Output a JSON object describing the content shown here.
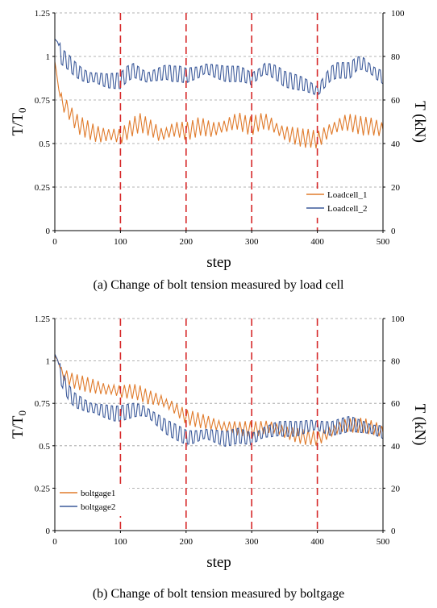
{
  "chart_data": [
    {
      "type": "line",
      "title": "",
      "caption": "(a) Change of bolt tension measured by load cell",
      "xlabel": "step",
      "ylabel": "T/T₀",
      "ylabel_main": "T/T",
      "ylabel_sub": "0",
      "y2label": "T (kN)",
      "xlim": [
        0,
        500
      ],
      "ylim": [
        0,
        1.25
      ],
      "y2lim": [
        0,
        100
      ],
      "xticks": [
        "0",
        "100",
        "200",
        "300",
        "400",
        "500"
      ],
      "yticks": [
        "0",
        "0.25",
        "0.5",
        "0.75",
        "1",
        "1.25"
      ],
      "y2ticks": [
        "0",
        "20",
        "40",
        "60",
        "80",
        "100"
      ],
      "grid": "horizontal dashed",
      "markers": [
        100,
        200,
        300,
        400
      ],
      "legend_position": "bottom-right",
      "series": [
        {
          "name": "Loadcell_1",
          "color": "#e07b2c",
          "points": [
            [
              0,
              0.97
            ],
            [
              3,
              0.9
            ],
            [
              5,
              0.83
            ],
            [
              8,
              0.77
            ],
            [
              12,
              0.73
            ],
            [
              16,
              0.71
            ],
            [
              20,
              0.7
            ],
            [
              25,
              0.66
            ],
            [
              30,
              0.64
            ],
            [
              35,
              0.61
            ],
            [
              40,
              0.6
            ],
            [
              50,
              0.58
            ],
            [
              60,
              0.56
            ],
            [
              70,
              0.55
            ],
            [
              80,
              0.55
            ],
            [
              90,
              0.55
            ],
            [
              100,
              0.54
            ],
            [
              110,
              0.57
            ],
            [
              120,
              0.6
            ],
            [
              130,
              0.62
            ],
            [
              140,
              0.6
            ],
            [
              150,
              0.58
            ],
            [
              160,
              0.55
            ],
            [
              170,
              0.56
            ],
            [
              180,
              0.58
            ],
            [
              190,
              0.58
            ],
            [
              200,
              0.57
            ],
            [
              210,
              0.58
            ],
            [
              220,
              0.6
            ],
            [
              230,
              0.59
            ],
            [
              240,
              0.58
            ],
            [
              250,
              0.59
            ],
            [
              260,
              0.6
            ],
            [
              270,
              0.62
            ],
            [
              280,
              0.63
            ],
            [
              290,
              0.61
            ],
            [
              300,
              0.6
            ],
            [
              310,
              0.62
            ],
            [
              320,
              0.63
            ],
            [
              330,
              0.61
            ],
            [
              340,
              0.58
            ],
            [
              350,
              0.56
            ],
            [
              360,
              0.55
            ],
            [
              370,
              0.54
            ],
            [
              380,
              0.53
            ],
            [
              390,
              0.53
            ],
            [
              400,
              0.52
            ],
            [
              410,
              0.55
            ],
            [
              420,
              0.58
            ],
            [
              430,
              0.6
            ],
            [
              440,
              0.62
            ],
            [
              450,
              0.62
            ],
            [
              460,
              0.61
            ],
            [
              470,
              0.6
            ],
            [
              480,
              0.6
            ],
            [
              490,
              0.59
            ],
            [
              500,
              0.58
            ]
          ],
          "oscillation": 0.06
        },
        {
          "name": "Loadcell_2",
          "color": "#3c5a9a",
          "points": [
            [
              0,
              1.1
            ],
            [
              5,
              1.08
            ],
            [
              10,
              1.0
            ],
            [
              20,
              0.97
            ],
            [
              30,
              0.93
            ],
            [
              40,
              0.9
            ],
            [
              50,
              0.88
            ],
            [
              60,
              0.88
            ],
            [
              70,
              0.87
            ],
            [
              80,
              0.86
            ],
            [
              90,
              0.86
            ],
            [
              100,
              0.86
            ],
            [
              110,
              0.9
            ],
            [
              120,
              0.92
            ],
            [
              130,
              0.9
            ],
            [
              140,
              0.88
            ],
            [
              150,
              0.89
            ],
            [
              160,
              0.9
            ],
            [
              170,
              0.91
            ],
            [
              180,
              0.9
            ],
            [
              190,
              0.9
            ],
            [
              200,
              0.89
            ],
            [
              210,
              0.9
            ],
            [
              220,
              0.91
            ],
            [
              230,
              0.93
            ],
            [
              240,
              0.92
            ],
            [
              250,
              0.91
            ],
            [
              260,
              0.9
            ],
            [
              270,
              0.9
            ],
            [
              280,
              0.9
            ],
            [
              290,
              0.89
            ],
            [
              300,
              0.87
            ],
            [
              310,
              0.9
            ],
            [
              320,
              0.93
            ],
            [
              330,
              0.92
            ],
            [
              340,
              0.9
            ],
            [
              350,
              0.87
            ],
            [
              360,
              0.86
            ],
            [
              370,
              0.85
            ],
            [
              380,
              0.84
            ],
            [
              390,
              0.82
            ],
            [
              400,
              0.8
            ],
            [
              410,
              0.85
            ],
            [
              420,
              0.9
            ],
            [
              430,
              0.92
            ],
            [
              440,
              0.92
            ],
            [
              450,
              0.92
            ],
            [
              460,
              0.96
            ],
            [
              470,
              0.96
            ],
            [
              480,
              0.93
            ],
            [
              490,
              0.9
            ],
            [
              500,
              0.88
            ]
          ],
          "oscillation": 0.07
        }
      ]
    },
    {
      "type": "line",
      "title": "",
      "caption": "(b) Change of bolt tension measured by boltgage",
      "xlabel": "step",
      "ylabel": "T/T₀",
      "ylabel_main": "T/T",
      "ylabel_sub": "0",
      "y2label": "T (kN)",
      "xlim": [
        0,
        500
      ],
      "ylim": [
        0,
        1.25
      ],
      "y2lim": [
        0,
        100
      ],
      "xticks": [
        "0",
        "100",
        "200",
        "300",
        "400",
        "500"
      ],
      "yticks": [
        "0",
        "0.25",
        "0.5",
        "0.75",
        "1",
        "1.25"
      ],
      "y2ticks": [
        "0",
        "20",
        "40",
        "60",
        "80",
        "100"
      ],
      "grid": "horizontal dashed",
      "markers": [
        100,
        200,
        300,
        400
      ],
      "legend_position": "bottom-left",
      "series": [
        {
          "name": "boltgage1",
          "color": "#e07b2c",
          "points": [
            [
              0,
              1.03
            ],
            [
              5,
              1.0
            ],
            [
              10,
              0.93
            ],
            [
              20,
              0.9
            ],
            [
              30,
              0.88
            ],
            [
              40,
              0.87
            ],
            [
              50,
              0.86
            ],
            [
              60,
              0.85
            ],
            [
              70,
              0.84
            ],
            [
              80,
              0.83
            ],
            [
              90,
              0.83
            ],
            [
              100,
              0.82
            ],
            [
              110,
              0.82
            ],
            [
              120,
              0.82
            ],
            [
              130,
              0.81
            ],
            [
              140,
              0.79
            ],
            [
              150,
              0.78
            ],
            [
              160,
              0.77
            ],
            [
              170,
              0.75
            ],
            [
              180,
              0.73
            ],
            [
              190,
              0.7
            ],
            [
              200,
              0.67
            ],
            [
              210,
              0.66
            ],
            [
              220,
              0.65
            ],
            [
              230,
              0.64
            ],
            [
              240,
              0.63
            ],
            [
              250,
              0.62
            ],
            [
              260,
              0.61
            ],
            [
              270,
              0.61
            ],
            [
              280,
              0.6
            ],
            [
              290,
              0.6
            ],
            [
              300,
              0.6
            ],
            [
              310,
              0.6
            ],
            [
              320,
              0.61
            ],
            [
              330,
              0.61
            ],
            [
              340,
              0.6
            ],
            [
              350,
              0.58
            ],
            [
              360,
              0.57
            ],
            [
              370,
              0.56
            ],
            [
              380,
              0.55
            ],
            [
              390,
              0.55
            ],
            [
              400,
              0.54
            ],
            [
              410,
              0.56
            ],
            [
              420,
              0.58
            ],
            [
              430,
              0.6
            ],
            [
              440,
              0.62
            ],
            [
              450,
              0.62
            ],
            [
              460,
              0.62
            ],
            [
              470,
              0.62
            ],
            [
              480,
              0.61
            ],
            [
              490,
              0.6
            ],
            [
              500,
              0.58
            ]
          ],
          "oscillation": 0.05
        },
        {
          "name": "boltgage2",
          "color": "#3c5a9a",
          "points": [
            [
              0,
              1.04
            ],
            [
              5,
              1.0
            ],
            [
              10,
              0.9
            ],
            [
              20,
              0.82
            ],
            [
              30,
              0.77
            ],
            [
              40,
              0.75
            ],
            [
              50,
              0.73
            ],
            [
              60,
              0.72
            ],
            [
              70,
              0.71
            ],
            [
              80,
              0.7
            ],
            [
              90,
              0.69
            ],
            [
              100,
              0.69
            ],
            [
              110,
              0.7
            ],
            [
              120,
              0.71
            ],
            [
              130,
              0.71
            ],
            [
              140,
              0.7
            ],
            [
              150,
              0.67
            ],
            [
              160,
              0.64
            ],
            [
              170,
              0.61
            ],
            [
              180,
              0.59
            ],
            [
              190,
              0.57
            ],
            [
              200,
              0.55
            ],
            [
              210,
              0.55
            ],
            [
              220,
              0.56
            ],
            [
              230,
              0.57
            ],
            [
              240,
              0.56
            ],
            [
              250,
              0.55
            ],
            [
              260,
              0.54
            ],
            [
              270,
              0.55
            ],
            [
              280,
              0.56
            ],
            [
              290,
              0.55
            ],
            [
              300,
              0.54
            ],
            [
              310,
              0.56
            ],
            [
              320,
              0.58
            ],
            [
              330,
              0.59
            ],
            [
              340,
              0.6
            ],
            [
              350,
              0.6
            ],
            [
              360,
              0.6
            ],
            [
              370,
              0.6
            ],
            [
              380,
              0.61
            ],
            [
              390,
              0.62
            ],
            [
              400,
              0.62
            ],
            [
              410,
              0.61
            ],
            [
              420,
              0.6
            ],
            [
              430,
              0.61
            ],
            [
              440,
              0.62
            ],
            [
              450,
              0.63
            ],
            [
              460,
              0.62
            ],
            [
              470,
              0.61
            ],
            [
              480,
              0.6
            ],
            [
              490,
              0.59
            ],
            [
              500,
              0.58
            ]
          ],
          "oscillation": 0.07
        }
      ]
    }
  ],
  "colors": {
    "marker_line": "#d62728",
    "grid": "#9a9a9a",
    "axis": "#000000"
  }
}
